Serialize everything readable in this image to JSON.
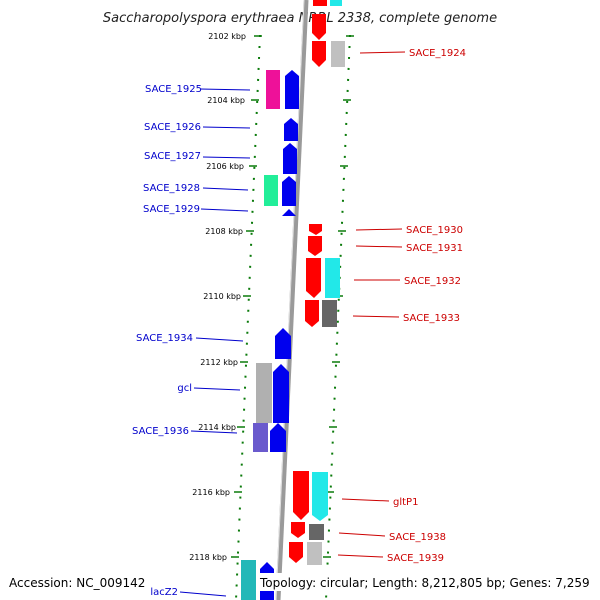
{
  "title": "Saccharopolyspora erythraea NRRL 2338, complete genome",
  "accession": "Accession: NC_009142",
  "topology": "Topology: circular; Length: 8,212,805 bp; Genes: 7,259",
  "colors": {
    "forward": "#0000ee",
    "reverse": "#ff0000",
    "left_label": "#0000cc",
    "right_label": "#cc0000",
    "tick": "#0a7a0a",
    "backbone": "#9a9a9a"
  },
  "kbp_ticks": [
    "2102 kbp",
    "2104 kbp",
    "2106 kbp",
    "2108 kbp",
    "2110 kbp",
    "2112 kbp",
    "2114 kbp",
    "2116 kbp",
    "2118 kbp"
  ],
  "left_labels": [
    "SACE_1925",
    "SACE_1926",
    "SACE_1927",
    "SACE_1928",
    "SACE_1929",
    "SACE_1934",
    "gcl",
    "SACE_1936",
    "lacZ2"
  ],
  "right_labels": [
    "SACE_1924",
    "SACE_1930",
    "SACE_1931",
    "SACE_1932",
    "SACE_1933",
    "gltP1",
    "SACE_1938",
    "SACE_1939"
  ]
}
